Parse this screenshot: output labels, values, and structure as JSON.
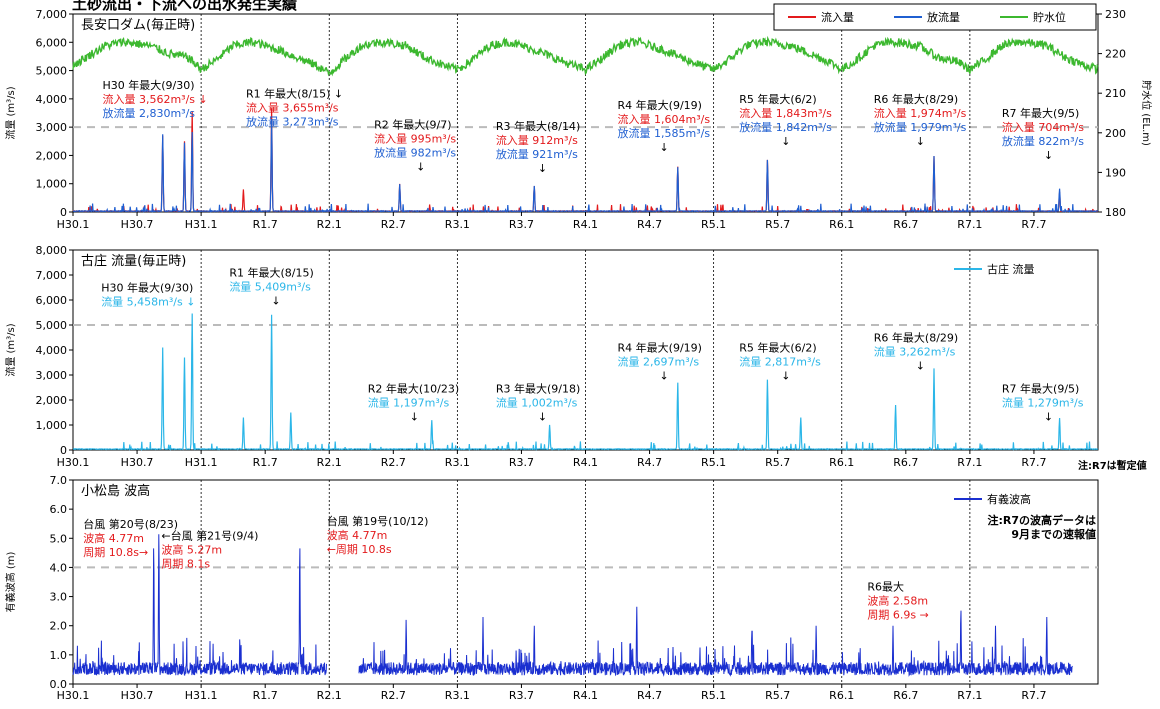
{
  "page_title": "土砂流出・下流への出水発生実績",
  "chart_data": [
    {
      "type": "line",
      "title": "長安口ダム(毎正時)",
      "ylabel": "流量 (m³/s)",
      "ylabel_right": "貯水位 (EL.m)",
      "ylim": [
        0,
        7000
      ],
      "ylim_right": [
        180,
        230
      ],
      "yticks": [
        "0",
        "1,000",
        "2,000",
        "3,000",
        "4,000",
        "5,000",
        "6,000",
        "7,000"
      ],
      "yticks_right": [
        "180",
        "190",
        "200",
        "210",
        "220",
        "230"
      ],
      "x_categories": [
        "H30.1",
        "H30.7",
        "H31.1",
        "R1.7",
        "R2.1",
        "R2.7",
        "R3.1",
        "R3.7",
        "R4.1",
        "R4.7",
        "R5.1",
        "R5.7",
        "R6.1",
        "R6.7",
        "R7.1",
        "R7.7"
      ],
      "legend": [
        "流入量",
        "放流量",
        "貯水位"
      ],
      "legend_position": "top-right",
      "series": [
        {
          "name": "流入量",
          "color": "#e31a1c",
          "peaks": [
            {
              "t": 0.7,
              "v": 2700
            },
            {
              "t": 0.87,
              "v": 2500
            },
            {
              "t": 0.93,
              "v": 3562
            },
            {
              "t": 1.55,
              "v": 3655
            },
            {
              "t": 1.33,
              "v": 800
            },
            {
              "t": 2.55,
              "v": 995
            },
            {
              "t": 3.6,
              "v": 912
            },
            {
              "t": 4.72,
              "v": 1604
            },
            {
              "t": 5.42,
              "v": 1843
            },
            {
              "t": 6.72,
              "v": 1974
            },
            {
              "t": 7.7,
              "v": 704
            }
          ]
        },
        {
          "name": "放流量",
          "color": "#1f5fd1",
          "peaks": [
            {
              "t": 0.7,
              "v": 2750
            },
            {
              "t": 0.87,
              "v": 2450
            },
            {
              "t": 0.93,
              "v": 2830
            },
            {
              "t": 1.55,
              "v": 3273
            },
            {
              "t": 2.55,
              "v": 982
            },
            {
              "t": 3.6,
              "v": 921
            },
            {
              "t": 4.72,
              "v": 1585
            },
            {
              "t": 5.42,
              "v": 1842
            },
            {
              "t": 6.72,
              "v": 1979
            },
            {
              "t": 7.7,
              "v": 822
            }
          ]
        },
        {
          "name": "貯水位",
          "color": "#3cb82f",
          "level": {
            "t": [
              0,
              0.1,
              0.25,
              0.4,
              0.6,
              0.75,
              0.9,
              1.0,
              1.1,
              1.25,
              1.4,
              1.6,
              1.75,
              1.9,
              2.0,
              2.1,
              2.25,
              2.4,
              2.6,
              2.75,
              2.9,
              3.0,
              3.1,
              3.25,
              3.4,
              3.6,
              3.75,
              3.9,
              4.0,
              4.1,
              4.25,
              4.4,
              4.6,
              4.75,
              4.9,
              5.0,
              5.1,
              5.25,
              5.4,
              5.6,
              5.75,
              5.9,
              6.0,
              6.1,
              6.25,
              6.4,
              6.6,
              6.75,
              6.9,
              7.0,
              7.1,
              7.25,
              7.4,
              7.6,
              7.75,
              7.9,
              8.0
            ],
            "v": [
              217,
              219,
              222,
              223,
              222,
              220,
              219,
              216,
              218,
              222,
              223,
              221,
              219,
              217,
              215,
              218,
              222,
              223,
              222,
              219,
              217,
              216,
              218,
              222,
              223,
              221,
              219,
              217,
              216,
              218,
              222,
              223,
              221,
              219,
              217,
              216,
              218,
              222,
              223,
              222,
              220,
              218,
              216,
              218,
              222,
              223,
              222,
              219,
              218,
              216,
              218,
              222,
              223,
              222,
              219,
              217,
              216
            ]
          }
        }
      ],
      "annotations": [
        {
          "t": 0.23,
          "v": 4350,
          "lines": [
            {
              "text": "H30 年最大(9/30)",
              "color": "#000"
            },
            {
              "text": "流入量 3,562m³/s ↓",
              "color": "#e31a1c"
            },
            {
              "text": "放流量 2,830m³/s",
              "color": "#1f5fd1"
            }
          ]
        },
        {
          "t": 1.35,
          "v": 4050,
          "lines": [
            {
              "text": "R1 年最大(8/15) ↓",
              "color": "#000"
            },
            {
              "text": "流入量 3,655m³/s",
              "color": "#e31a1c"
            },
            {
              "text": "放流量 3,273m³/s",
              "color": "#1f5fd1"
            }
          ]
        },
        {
          "t": 2.35,
          "v": 2950,
          "lines": [
            {
              "text": "R2 年最大(9/7)",
              "color": "#000"
            },
            {
              "text": "流入量 995m³/s",
              "color": "#e31a1c"
            },
            {
              "text": "放流量 982m³/s",
              "color": "#1f5fd1"
            },
            {
              "text": "↓",
              "color": "#000"
            }
          ]
        },
        {
          "t": 3.3,
          "v": 2900,
          "lines": [
            {
              "text": "R3 年最大(8/14)",
              "color": "#000"
            },
            {
              "text": "流入量 912m³/s",
              "color": "#e31a1c"
            },
            {
              "text": "放流量 921m³/s",
              "color": "#1f5fd1"
            },
            {
              "text": "↓",
              "color": "#000"
            }
          ]
        },
        {
          "t": 4.25,
          "v": 3650,
          "lines": [
            {
              "text": "R4 年最大(9/19)",
              "color": "#000"
            },
            {
              "text": "流入量 1,604m³/s",
              "color": "#e31a1c"
            },
            {
              "text": "放流量 1,585m³/s",
              "color": "#1f5fd1"
            },
            {
              "text": "↓",
              "color": "#000"
            }
          ]
        },
        {
          "t": 5.2,
          "v": 3850,
          "lines": [
            {
              "text": "R5 年最大(6/2)",
              "color": "#000"
            },
            {
              "text": "流入量 1,843m³/s",
              "color": "#e31a1c"
            },
            {
              "text": "放流量 1,842m³/s",
              "color": "#1f5fd1"
            },
            {
              "text": "↓",
              "color": "#000"
            }
          ]
        },
        {
          "t": 6.25,
          "v": 3850,
          "lines": [
            {
              "text": "R6 年最大(8/29)",
              "color": "#000"
            },
            {
              "text": "流入量 1,974m³/s",
              "color": "#e31a1c"
            },
            {
              "text": "放流量 1,979m³/s",
              "color": "#1f5fd1"
            },
            {
              "text": "↓",
              "color": "#000"
            }
          ]
        },
        {
          "t": 7.25,
          "v": 3350,
          "lines": [
            {
              "text": "R7 年最大(9/5)",
              "color": "#000"
            },
            {
              "text": "流入量 704m³/s",
              "color": "#e31a1c"
            },
            {
              "text": "放流量 822m³/s",
              "color": "#1f5fd1"
            },
            {
              "text": "↓",
              "color": "#000"
            }
          ]
        }
      ]
    },
    {
      "type": "line",
      "title": "古庄 流量(毎正時)",
      "ylabel": "流量 (m³/s)",
      "ylim": [
        0,
        8000
      ],
      "yticks": [
        "0",
        "1,000",
        "2,000",
        "3,000",
        "4,000",
        "5,000",
        "6,000",
        "7,000",
        "8,000"
      ],
      "x_categories": [
        "H30.1",
        "H30.7",
        "H31.1",
        "R1.7",
        "R2.1",
        "R2.7",
        "R3.1",
        "R3.7",
        "R4.1",
        "R4.7",
        "R5.1",
        "R5.7",
        "R6.1",
        "R6.7",
        "R7.1",
        "R7.7"
      ],
      "legend": [
        "古庄 流量"
      ],
      "legend_position": "top-right",
      "note": "注:R7は暫定値",
      "series": [
        {
          "name": "古庄 流量",
          "color": "#2bb6e8",
          "peaks": [
            {
              "t": 0.7,
              "v": 4100
            },
            {
              "t": 0.87,
              "v": 3700
            },
            {
              "t": 0.93,
              "v": 5458
            },
            {
              "t": 1.55,
              "v": 5409
            },
            {
              "t": 1.33,
              "v": 1300
            },
            {
              "t": 1.7,
              "v": 1500
            },
            {
              "t": 2.8,
              "v": 1197
            },
            {
              "t": 3.72,
              "v": 1002
            },
            {
              "t": 4.72,
              "v": 2697
            },
            {
              "t": 5.42,
              "v": 2817
            },
            {
              "t": 5.68,
              "v": 1300
            },
            {
              "t": 6.42,
              "v": 1800
            },
            {
              "t": 6.72,
              "v": 3262
            },
            {
              "t": 7.7,
              "v": 1279
            }
          ]
        }
      ],
      "annotations": [
        {
          "t": 0.22,
          "v": 6350,
          "lines": [
            {
              "text": "H30 年最大(9/30)",
              "color": "#000"
            },
            {
              "text": "流量 5,458m³/s ↓",
              "color": "#2bb6e8"
            }
          ]
        },
        {
          "t": 1.22,
          "v": 6950,
          "lines": [
            {
              "text": "R1 年最大(8/15)",
              "color": "#000"
            },
            {
              "text": "流量 5,409m³/s",
              "color": "#2bb6e8"
            },
            {
              "text": "↓",
              "color": "#000"
            }
          ]
        },
        {
          "t": 2.3,
          "v": 2300,
          "lines": [
            {
              "text": "R2 年最大(10/23)",
              "color": "#000"
            },
            {
              "text": "流量 1,197m³/s",
              "color": "#2bb6e8"
            },
            {
              "text": "↓",
              "color": "#000"
            }
          ]
        },
        {
          "t": 3.3,
          "v": 2300,
          "lines": [
            {
              "text": "R3 年最大(9/18)",
              "color": "#000"
            },
            {
              "text": "流量 1,002m³/s",
              "color": "#2bb6e8"
            },
            {
              "text": "↓",
              "color": "#000"
            }
          ]
        },
        {
          "t": 4.25,
          "v": 3950,
          "lines": [
            {
              "text": "R4 年最大(9/19)",
              "color": "#000"
            },
            {
              "text": "流量 2,697m³/s",
              "color": "#2bb6e8"
            },
            {
              "text": "↓",
              "color": "#000"
            }
          ]
        },
        {
          "t": 5.2,
          "v": 3950,
          "lines": [
            {
              "text": "R5 年最大(6/2)",
              "color": "#000"
            },
            {
              "text": "流量 2,817m³/s",
              "color": "#2bb6e8"
            },
            {
              "text": "↓",
              "color": "#000"
            }
          ]
        },
        {
          "t": 6.25,
          "v": 4350,
          "lines": [
            {
              "text": "R6 年最大(8/29)",
              "color": "#000"
            },
            {
              "text": "流量 3,262m³/s",
              "color": "#2bb6e8"
            },
            {
              "text": "↓",
              "color": "#000"
            }
          ]
        },
        {
          "t": 7.25,
          "v": 2300,
          "lines": [
            {
              "text": "R7 年最大(9/5)",
              "color": "#000"
            },
            {
              "text": "流量 1,279m³/s",
              "color": "#2bb6e8"
            },
            {
              "text": "↓",
              "color": "#000"
            }
          ]
        }
      ]
    },
    {
      "type": "line",
      "title": "小松島 波高",
      "ylabel": "有義波高 (m)",
      "ylim": [
        0,
        7
      ],
      "yticks": [
        "0.0",
        "1.0",
        "2.0",
        "3.0",
        "4.0",
        "5.0",
        "6.0",
        "7.0"
      ],
      "x_categories": [
        "H30.1",
        "H30.7",
        "H31.1",
        "R1.7",
        "R2.1",
        "R2.7",
        "R3.1",
        "R3.7",
        "R4.1",
        "R4.7",
        "R5.1",
        "R5.7",
        "R6.1",
        "R6.7",
        "R7.1",
        "R7.7"
      ],
      "legend": [
        "有義波高"
      ],
      "legend_position": "top-right",
      "note_lines": [
        "注:R7の波高データは",
        "9月までの速報値"
      ],
      "series": [
        {
          "name": "有義波高",
          "color": "#1a2fd0",
          "gaps": [
            [
              1.98,
              2.23
            ],
            [
              7.8,
              8.0
            ]
          ],
          "peaks": [
            {
              "t": 0.63,
              "v": 4.77
            },
            {
              "t": 0.67,
              "v": 5.27
            },
            {
              "t": 1.77,
              "v": 4.77
            },
            {
              "t": 2.6,
              "v": 2.2
            },
            {
              "t": 3.2,
              "v": 2.3
            },
            {
              "t": 3.6,
              "v": 2.0
            },
            {
              "t": 4.4,
              "v": 2.65
            },
            {
              "t": 5.3,
              "v": 2.0
            },
            {
              "t": 5.8,
              "v": 2.0
            },
            {
              "t": 6.4,
              "v": 2.0
            },
            {
              "t": 6.93,
              "v": 2.58
            },
            {
              "t": 7.2,
              "v": 2.0
            },
            {
              "t": 7.6,
              "v": 2.3
            }
          ]
        }
      ],
      "annotations": [
        {
          "t": 0.08,
          "v": 5.35,
          "lines": [
            {
              "text": "台風 第20号(8/23)",
              "color": "#000"
            },
            {
              "text": "波高 4.77m",
              "color": "#e31a1c"
            },
            {
              "text": "周期 10.8s→",
              "color": "#e31a1c"
            }
          ]
        },
        {
          "t": 0.69,
          "v": 4.95,
          "lines": [
            {
              "text": "←台風 第21号(9/4)",
              "color": "#000"
            },
            {
              "text": "波高 5.27m",
              "color": "#e31a1c"
            },
            {
              "text": "周期 8.1s",
              "color": "#e31a1c"
            }
          ]
        },
        {
          "t": 1.98,
          "v": 5.45,
          "lines": [
            {
              "text": "台風 第19号(10/12)",
              "color": "#000"
            },
            {
              "text": "波高 4.77m",
              "color": "#e31a1c"
            },
            {
              "text": "←周期 10.8s",
              "color": "#e31a1c"
            }
          ]
        },
        {
          "t": 6.2,
          "v": 3.2,
          "lines": [
            {
              "text": "R6最大",
              "color": "#000"
            },
            {
              "text": "波高 2.58m",
              "color": "#e31a1c"
            },
            {
              "text": "周期 6.9s →",
              "color": "#e31a1c"
            }
          ]
        }
      ]
    }
  ]
}
